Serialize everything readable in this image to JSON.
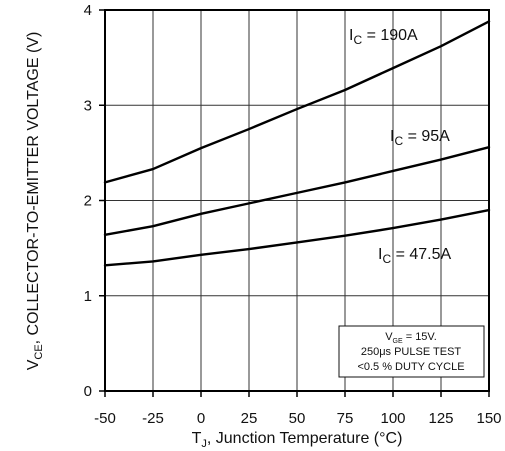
{
  "chart_data": {
    "type": "line",
    "xlabel": {
      "prefix": "T",
      "subscript": "J",
      "suffix": ", Junction Temperature (°C)"
    },
    "ylabel": {
      "prefix": "V",
      "subscript": "CE",
      "suffix": ", COLLECTOR-TO-EMITTER VOLTAGE (V)"
    },
    "xlim": [
      -50,
      150
    ],
    "ylim": [
      0,
      4
    ],
    "x_ticks": [
      -50,
      -25,
      0,
      25,
      50,
      75,
      100,
      125,
      150
    ],
    "x_tick_labels": [
      "-50",
      "-25",
      "0",
      "25",
      "50",
      "75",
      "100",
      "125",
      "150"
    ],
    "y_ticks": [
      0,
      1,
      2,
      3,
      4
    ],
    "y_tick_labels": [
      "0",
      "1",
      "2",
      "3",
      "4"
    ],
    "grid": true,
    "series": [
      {
        "name": {
          "prefix": "I",
          "subscript": "C",
          "suffix": " = 190A"
        },
        "x": [
          -50,
          -25,
          0,
          25,
          50,
          75,
          100,
          125,
          150
        ],
        "y": [
          2.19,
          2.33,
          2.55,
          2.75,
          2.96,
          3.16,
          3.39,
          3.62,
          3.88
        ]
      },
      {
        "name": {
          "prefix": "I",
          "subscript": "C",
          "suffix": " = 95A"
        },
        "x": [
          -50,
          -25,
          0,
          25,
          50,
          75,
          100,
          125,
          150
        ],
        "y": [
          1.64,
          1.73,
          1.86,
          1.97,
          2.08,
          2.19,
          2.31,
          2.43,
          2.56
        ]
      },
      {
        "name": {
          "prefix": "I",
          "subscript": "C",
          "suffix": " = 47.5A"
        },
        "x": [
          -50,
          -25,
          0,
          25,
          50,
          75,
          100,
          125,
          150
        ],
        "y": [
          1.32,
          1.36,
          1.43,
          1.49,
          1.56,
          1.63,
          1.71,
          1.8,
          1.9
        ]
      }
    ],
    "note": {
      "line1_prefix": "V",
      "line1_subscript": "GE",
      "line1_suffix": " = 15V.",
      "line2": "250μs PULSE TEST",
      "line3": "<0.5 % DUTY CYCLE"
    }
  }
}
